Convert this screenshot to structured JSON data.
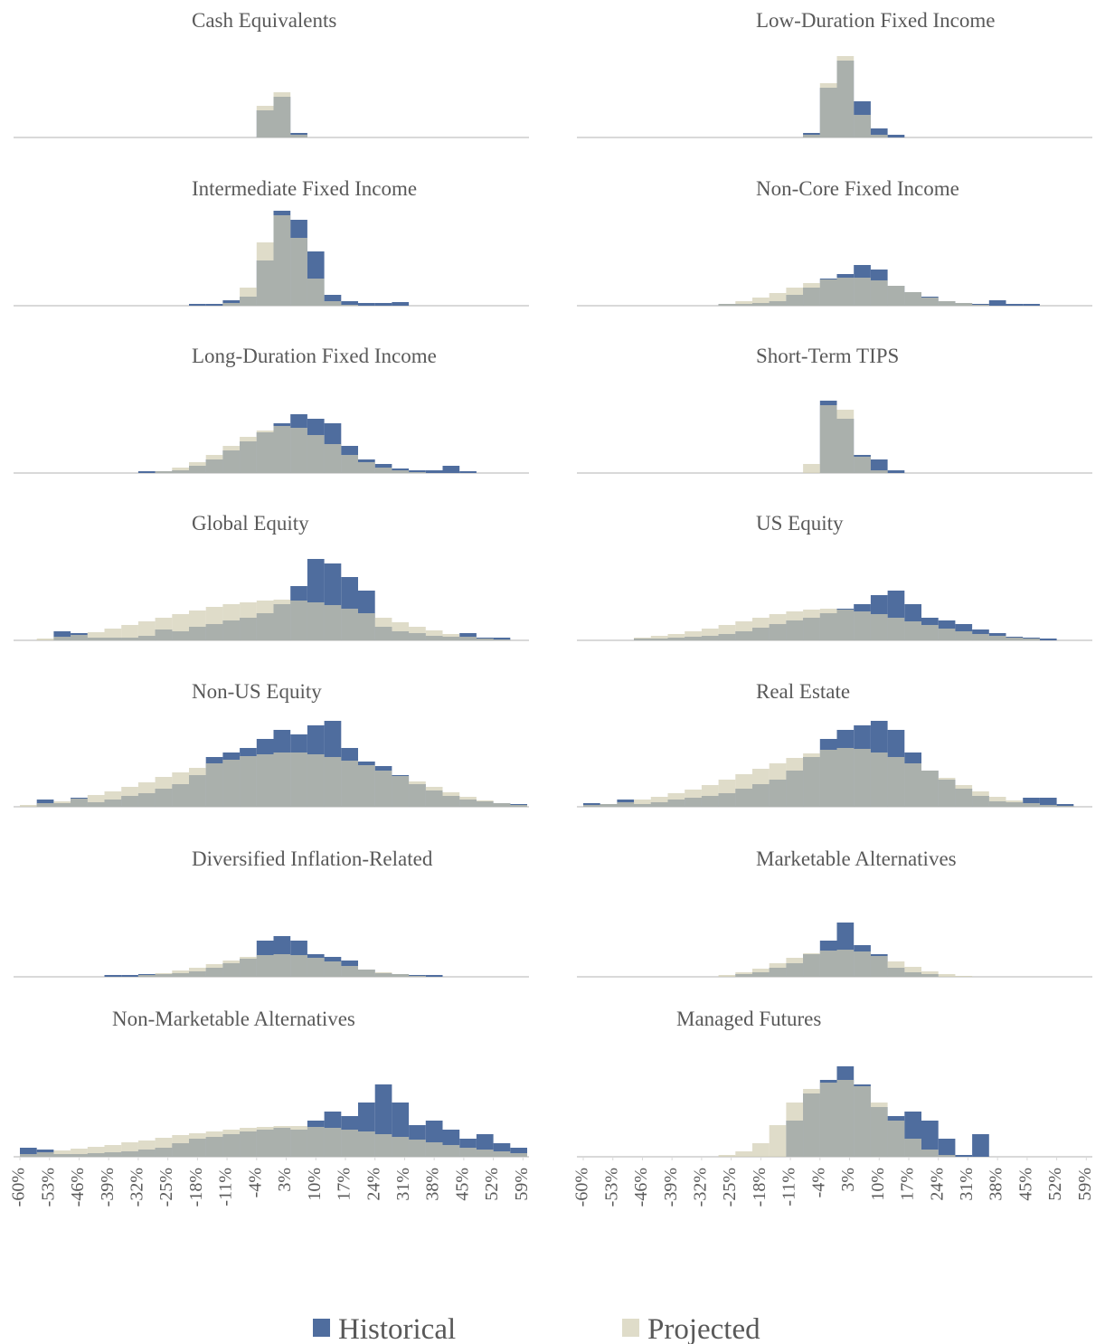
{
  "chart_data": {
    "type": "histogram",
    "bins": [
      -60,
      -56,
      -52,
      -48,
      -44,
      -40,
      -36,
      -32,
      -28,
      -24,
      -20,
      -16,
      -12,
      -8,
      -4,
      0,
      4,
      8,
      12,
      16,
      20,
      24,
      28,
      32,
      36,
      40,
      44,
      48,
      52,
      56,
      60
    ],
    "xlim": [
      -60,
      60
    ],
    "xticks": [
      {
        "value": -60,
        "label": "-60%"
      },
      {
        "value": -53,
        "label": "-53%"
      },
      {
        "value": -46,
        "label": "-46%"
      },
      {
        "value": -39,
        "label": "-39%"
      },
      {
        "value": -32,
        "label": "-32%"
      },
      {
        "value": -25,
        "label": "-25%"
      },
      {
        "value": -18,
        "label": "-18%"
      },
      {
        "value": -11,
        "label": "-11%"
      },
      {
        "value": -4,
        "label": "-4%"
      },
      {
        "value": 3,
        "label": "3%"
      },
      {
        "value": 10,
        "label": "10%"
      },
      {
        "value": 17,
        "label": "17%"
      },
      {
        "value": 24,
        "label": "24%"
      },
      {
        "value": 31,
        "label": "31%"
      },
      {
        "value": 38,
        "label": "38%"
      },
      {
        "value": 45,
        "label": "45%"
      },
      {
        "value": 52,
        "label": "52%"
      },
      {
        "value": 59,
        "label": "59%"
      }
    ],
    "ylim": [
      0,
      140
    ],
    "series": [
      {
        "name": "Historical",
        "color": "#4f6d9e"
      },
      {
        "name": "Projected",
        "color": "#d2cdb2"
      }
    ],
    "panels": [
      {
        "title": "Cash Equivalents",
        "values": [
          [
            0,
            0,
            0,
            0,
            0,
            0,
            0,
            0,
            0,
            0,
            0,
            0,
            0,
            0,
            30,
            45,
            5,
            0,
            0,
            0,
            0,
            0,
            0,
            0,
            0,
            0,
            0,
            0,
            0,
            0
          ],
          [
            0,
            0,
            0,
            0,
            0,
            0,
            0,
            0,
            0,
            0,
            0,
            0,
            0,
            0,
            35,
            50,
            3,
            0,
            0,
            0,
            0,
            0,
            0,
            0,
            0,
            0,
            0,
            0,
            0,
            0
          ]
        ]
      },
      {
        "title": "Low-Duration Fixed Income",
        "values": [
          [
            0,
            0,
            0,
            0,
            0,
            0,
            0,
            0,
            0,
            0,
            0,
            0,
            0,
            5,
            55,
            85,
            40,
            10,
            3,
            0,
            0,
            0,
            0,
            0,
            0,
            0,
            0,
            0,
            0,
            0
          ],
          [
            0,
            0,
            0,
            0,
            0,
            0,
            0,
            0,
            0,
            0,
            0,
            0,
            0,
            3,
            60,
            90,
            25,
            3,
            0,
            0,
            0,
            0,
            0,
            0,
            0,
            0,
            0,
            0,
            0,
            0
          ]
        ]
      },
      {
        "title": "Intermediate Fixed Income",
        "values": [
          [
            0,
            0,
            0,
            0,
            0,
            0,
            0,
            0,
            0,
            0,
            2,
            2,
            6,
            10,
            50,
            105,
            95,
            60,
            12,
            5,
            3,
            3,
            4,
            0,
            0,
            0,
            0,
            0,
            0,
            0
          ],
          [
            0,
            0,
            0,
            0,
            0,
            0,
            0,
            0,
            0,
            0,
            0,
            0,
            3,
            20,
            70,
            100,
            75,
            30,
            5,
            1,
            0,
            0,
            0,
            0,
            0,
            0,
            0,
            0,
            0,
            0
          ]
        ]
      },
      {
        "title": "Non-Core Fixed Income",
        "values": [
          [
            0,
            0,
            0,
            0,
            0,
            0,
            0,
            0,
            2,
            2,
            3,
            5,
            12,
            20,
            30,
            35,
            45,
            40,
            22,
            15,
            10,
            5,
            3,
            2,
            6,
            2,
            2,
            0,
            0,
            0
          ],
          [
            0,
            0,
            0,
            0,
            0,
            0,
            0,
            0,
            2,
            5,
            9,
            14,
            20,
            25,
            29,
            31,
            31,
            28,
            22,
            15,
            9,
            5,
            3,
            1,
            0,
            0,
            0,
            0,
            0,
            0
          ]
        ]
      },
      {
        "title": "Long-Duration Fixed Income",
        "values": [
          [
            0,
            0,
            0,
            0,
            0,
            0,
            0,
            2,
            2,
            3,
            8,
            15,
            25,
            35,
            45,
            55,
            65,
            60,
            55,
            30,
            15,
            10,
            5,
            3,
            3,
            8,
            2,
            0,
            0,
            0
          ],
          [
            0,
            0,
            0,
            0,
            0,
            0,
            0,
            0,
            2,
            6,
            12,
            20,
            30,
            40,
            47,
            52,
            50,
            42,
            32,
            20,
            12,
            6,
            3,
            1,
            0,
            0,
            0,
            0,
            0,
            0
          ]
        ]
      },
      {
        "title": "Short-Term TIPS",
        "values": [
          [
            0,
            0,
            0,
            0,
            0,
            0,
            0,
            0,
            0,
            0,
            0,
            0,
            0,
            0,
            80,
            60,
            20,
            15,
            3,
            0,
            0,
            0,
            0,
            0,
            0,
            0,
            0,
            0,
            0,
            0
          ],
          [
            0,
            0,
            0,
            0,
            0,
            0,
            0,
            0,
            0,
            0,
            0,
            0,
            0,
            10,
            75,
            70,
            18,
            3,
            0,
            0,
            0,
            0,
            0,
            0,
            0,
            0,
            0,
            0,
            0,
            0
          ]
        ]
      },
      {
        "title": "Global Equity",
        "values": [
          [
            0,
            0,
            10,
            8,
            3,
            3,
            3,
            5,
            12,
            10,
            15,
            18,
            22,
            25,
            30,
            40,
            60,
            90,
            85,
            70,
            55,
            15,
            10,
            8,
            5,
            4,
            8,
            3,
            3,
            0
          ],
          [
            0,
            2,
            4,
            6,
            9,
            13,
            17,
            21,
            25,
            29,
            33,
            37,
            40,
            42,
            44,
            45,
            44,
            42,
            39,
            35,
            30,
            25,
            20,
            15,
            11,
            7,
            4,
            2,
            1,
            0
          ]
        ]
      },
      {
        "title": "US Equity",
        "values": [
          [
            0,
            0,
            0,
            2,
            2,
            3,
            4,
            5,
            7,
            10,
            14,
            18,
            22,
            25,
            30,
            35,
            40,
            50,
            55,
            40,
            25,
            22,
            18,
            12,
            8,
            4,
            3,
            2,
            0,
            0
          ],
          [
            0,
            0,
            0,
            3,
            5,
            7,
            10,
            13,
            17,
            21,
            25,
            29,
            32,
            34,
            35,
            34,
            32,
            29,
            25,
            21,
            17,
            13,
            10,
            7,
            5,
            3,
            2,
            0,
            0,
            0
          ]
        ]
      },
      {
        "title": "Non-US Equity",
        "values": [
          [
            0,
            8,
            4,
            10,
            5,
            8,
            12,
            15,
            20,
            25,
            35,
            55,
            60,
            65,
            75,
            85,
            80,
            90,
            95,
            65,
            50,
            45,
            35,
            25,
            18,
            12,
            8,
            6,
            4,
            3
          ],
          [
            2,
            4,
            6,
            9,
            13,
            17,
            22,
            27,
            33,
            38,
            43,
            48,
            52,
            56,
            58,
            60,
            60,
            58,
            55,
            51,
            46,
            40,
            34,
            28,
            22,
            16,
            11,
            7,
            4,
            2
          ]
        ]
      },
      {
        "title": "Real Estate",
        "values": [
          [
            4,
            3,
            8,
            3,
            5,
            8,
            10,
            12,
            15,
            20,
            25,
            30,
            40,
            55,
            75,
            85,
            90,
            95,
            85,
            60,
            40,
            30,
            20,
            12,
            6,
            5,
            10,
            10,
            3,
            0
          ],
          [
            2,
            3,
            5,
            8,
            11,
            15,
            19,
            24,
            30,
            36,
            42,
            48,
            54,
            59,
            63,
            65,
            64,
            60,
            55,
            48,
            40,
            32,
            24,
            17,
            11,
            7,
            4,
            2,
            1,
            0
          ]
        ]
      },
      {
        "title": "Diversified Inflation-Related",
        "values": [
          [
            0,
            0,
            0,
            0,
            0,
            2,
            2,
            3,
            3,
            4,
            6,
            10,
            15,
            20,
            40,
            45,
            40,
            25,
            22,
            18,
            8,
            4,
            3,
            2,
            2,
            0,
            0,
            0,
            0,
            0
          ],
          [
            0,
            0,
            0,
            0,
            0,
            0,
            0,
            2,
            4,
            7,
            10,
            14,
            18,
            22,
            24,
            25,
            24,
            21,
            17,
            12,
            8,
            5,
            3,
            1,
            0,
            0,
            0,
            0,
            0,
            0
          ]
        ]
      },
      {
        "title": "Marketable Alternatives",
        "values": [
          [
            0,
            0,
            0,
            0,
            0,
            0,
            0,
            0,
            0,
            3,
            5,
            10,
            15,
            25,
            40,
            60,
            35,
            25,
            10,
            5,
            3,
            0,
            0,
            0,
            0,
            0,
            0,
            0,
            0,
            0
          ],
          [
            0,
            0,
            0,
            0,
            0,
            0,
            0,
            0,
            2,
            5,
            9,
            15,
            21,
            26,
            29,
            30,
            28,
            23,
            17,
            11,
            6,
            3,
            1,
            0,
            0,
            0,
            0,
            0,
            0,
            0
          ]
        ]
      },
      {
        "title": "Non-Marketable Alternatives",
        "values": [
          [
            10,
            8,
            3,
            3,
            4,
            5,
            6,
            8,
            10,
            15,
            20,
            22,
            25,
            28,
            30,
            32,
            30,
            40,
            50,
            45,
            60,
            80,
            60,
            35,
            40,
            30,
            20,
            25,
            15,
            10
          ],
          [
            3,
            5,
            7,
            9,
            11,
            13,
            16,
            18,
            21,
            24,
            26,
            28,
            30,
            32,
            33,
            34,
            34,
            33,
            32,
            30,
            28,
            25,
            22,
            19,
            16,
            13,
            10,
            8,
            6,
            4
          ]
        ]
      },
      {
        "title": "Managed Futures",
        "values": [
          [
            0,
            0,
            0,
            0,
            0,
            0,
            0,
            0,
            0,
            0,
            0,
            0,
            40,
            70,
            85,
            100,
            80,
            55,
            45,
            50,
            40,
            20,
            2,
            25,
            0,
            0,
            0,
            0,
            0,
            0
          ],
          [
            0,
            0,
            0,
            0,
            0,
            0,
            0,
            0,
            2,
            6,
            15,
            35,
            60,
            75,
            82,
            85,
            78,
            60,
            40,
            20,
            8,
            2,
            0,
            0,
            0,
            0,
            0,
            0,
            0,
            0
          ]
        ]
      }
    ]
  }
}
